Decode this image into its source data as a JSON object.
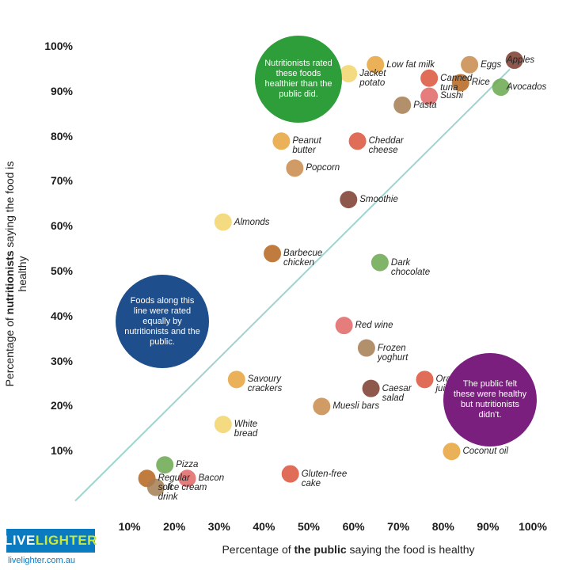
{
  "chart_data": {
    "type": "scatter",
    "xlabel_prefix": "Percentage of ",
    "xlabel_bold": "the public",
    "xlabel_suffix": " saying the food is healthy",
    "ylabel_prefix": "Percentage of ",
    "ylabel_bold": "nutritionists",
    "ylabel_suffix": " saying the food is healthy",
    "xlim": [
      0,
      100
    ],
    "ylim": [
      0,
      100
    ],
    "xticks": [
      "10%",
      "20%",
      "30%",
      "40%",
      "50%",
      "60%",
      "70%",
      "80%",
      "90%",
      "100%"
    ],
    "yticks": [
      "10%",
      "20%",
      "30%",
      "40%",
      "50%",
      "60%",
      "70%",
      "80%",
      "90%",
      "100%"
    ],
    "reference_line": "equal rating",
    "points": [
      {
        "label": "Low fat milk",
        "x": 64,
        "y": 96
      },
      {
        "label": "Canned\ntuna",
        "x": 76,
        "y": 93
      },
      {
        "label": "Eggs",
        "x": 85,
        "y": 96
      },
      {
        "label": "Apples",
        "x": 95,
        "y": 97
      },
      {
        "label": "Jacket\npotato",
        "x": 58,
        "y": 94
      },
      {
        "label": "Rice",
        "x": 83,
        "y": 92
      },
      {
        "label": "Avocados",
        "x": 92,
        "y": 91
      },
      {
        "label": "Sushi",
        "x": 76,
        "y": 89
      },
      {
        "label": "Pasta",
        "x": 70,
        "y": 87
      },
      {
        "label": "Peanut\nbutter",
        "x": 43,
        "y": 79
      },
      {
        "label": "Cheddar\ncheese",
        "x": 60,
        "y": 79
      },
      {
        "label": "Popcorn",
        "x": 46,
        "y": 73
      },
      {
        "label": "Smoothie",
        "x": 58,
        "y": 66
      },
      {
        "label": "Almonds",
        "x": 30,
        "y": 61
      },
      {
        "label": "Barbecue\nchicken",
        "x": 41,
        "y": 54
      },
      {
        "label": "Dark\nchocolate",
        "x": 65,
        "y": 52
      },
      {
        "label": "Red wine",
        "x": 57,
        "y": 38
      },
      {
        "label": "Frozen\nyoghurt",
        "x": 62,
        "y": 33
      },
      {
        "label": "Savoury\ncrackers",
        "x": 33,
        "y": 26
      },
      {
        "label": "Orange\njuice",
        "x": 75,
        "y": 26
      },
      {
        "label": "Muesli bars",
        "x": 52,
        "y": 20
      },
      {
        "label": "Caesar\nsalad",
        "x": 63,
        "y": 24
      },
      {
        "label": "White\nbread",
        "x": 30,
        "y": 16
      },
      {
        "label": "Regular\nsoft\ndrink",
        "x": 13,
        "y": 4
      },
      {
        "label": "Pizza",
        "x": 17,
        "y": 7
      },
      {
        "label": "Bacon",
        "x": 22,
        "y": 4
      },
      {
        "label": "Ice cream",
        "x": 15,
        "y": 2
      },
      {
        "label": "Coconut oil",
        "x": 81,
        "y": 10
      },
      {
        "label": "Gluten-free\ncake",
        "x": 45,
        "y": 5
      }
    ],
    "annotations": [
      {
        "text": "Nutritionists rated these foods healthier than the public did.",
        "color": "#2e9e3a"
      },
      {
        "text": "Foods along this line were rated equally by nutritionists and the public.",
        "color": "#1f4e8c"
      },
      {
        "text": "The public felt these were healthy but nutritionists didn't.",
        "color": "#7b1f7e"
      }
    ]
  },
  "brand": {
    "logo_a": "LIVE",
    "logo_b": "LIGHTER",
    "site": "livelighter.com.au"
  },
  "colors": {
    "line": "#9fd3cf",
    "green": "#2e9e3a",
    "blue": "#1f4e8c",
    "purple": "#7b1f7e",
    "brand": "#0a7bc0"
  }
}
